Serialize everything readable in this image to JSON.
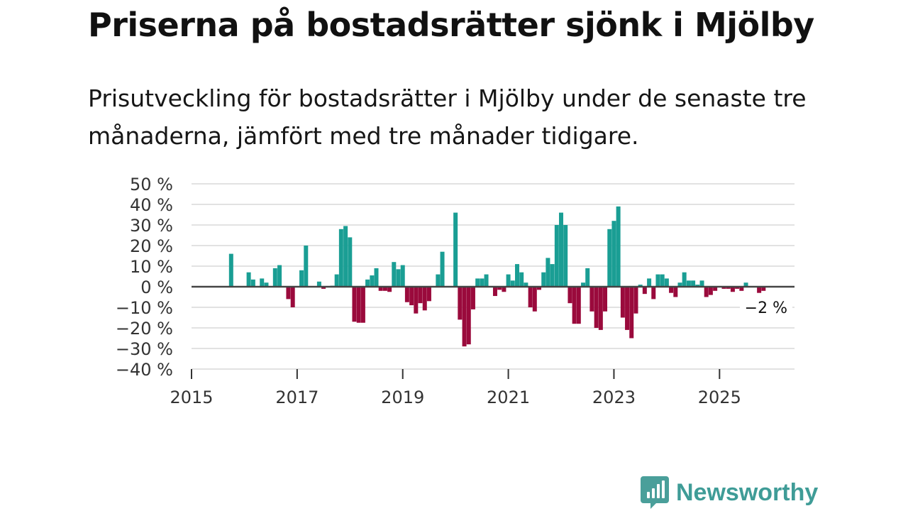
{
  "header": {
    "title": "Priserna på bostadsrätter sjönk i Mjölby",
    "subtitle": "Prisutveckling för bostadsrätter i Mjölby under de senaste tre månaderna, jämfört med tre månader tidigare."
  },
  "brand": {
    "name": "Newsworthy",
    "icon": "newsworthy-logo-icon",
    "color": "#4a9f9a"
  },
  "colors": {
    "positive": "#1a9e94",
    "negative": "#9a0a3c",
    "zero_line": "#444444",
    "grid": "#d9d9d9"
  },
  "chart_data": {
    "type": "bar",
    "title": "Priserna på bostadsrätter sjönk i Mjölby",
    "xlabel": "",
    "ylabel": "",
    "ylim": [
      -40,
      50
    ],
    "y_ticks": [
      {
        "v": 50,
        "label": "50 %"
      },
      {
        "v": 40,
        "label": "40 %"
      },
      {
        "v": 30,
        "label": "30 %"
      },
      {
        "v": 20,
        "label": "20 %"
      },
      {
        "v": 10,
        "label": "10 %"
      },
      {
        "v": 0,
        "label": "0 %"
      },
      {
        "v": -10,
        "label": "−10 %"
      },
      {
        "v": -20,
        "label": "−20 %"
      },
      {
        "v": -30,
        "label": "−30 %"
      },
      {
        "v": -40,
        "label": "−40 %"
      }
    ],
    "xlim": [
      2015.0,
      2026.42
    ],
    "x_ticks": [
      {
        "v": 2015,
        "label": "2015"
      },
      {
        "v": 2017,
        "label": "2017"
      },
      {
        "v": 2019,
        "label": "2019"
      },
      {
        "v": 2021,
        "label": "2021"
      },
      {
        "v": 2023,
        "label": "2023"
      },
      {
        "v": 2025,
        "label": "2025"
      }
    ],
    "grid": true,
    "annotation": {
      "x": 2025.875,
      "y": -2,
      "label": "−2 %"
    },
    "series": [
      {
        "name": "Prisutveckling",
        "points": [
          {
            "x": 2015.75,
            "y": 16
          },
          {
            "x": 2016.083,
            "y": 7
          },
          {
            "x": 2016.167,
            "y": 3.5
          },
          {
            "x": 2016.333,
            "y": 4
          },
          {
            "x": 2016.417,
            "y": 2
          },
          {
            "x": 2016.583,
            "y": 9
          },
          {
            "x": 2016.667,
            "y": 10.5
          },
          {
            "x": 2016.833,
            "y": -6
          },
          {
            "x": 2016.917,
            "y": -10
          },
          {
            "x": 2017.083,
            "y": 8
          },
          {
            "x": 2017.167,
            "y": 20
          },
          {
            "x": 2017.417,
            "y": 2.5
          },
          {
            "x": 2017.5,
            "y": -1
          },
          {
            "x": 2017.667,
            "y": 0.5
          },
          {
            "x": 2017.75,
            "y": 6
          },
          {
            "x": 2017.833,
            "y": 28
          },
          {
            "x": 2017.917,
            "y": 29.5
          },
          {
            "x": 2018.0,
            "y": 24
          },
          {
            "x": 2018.083,
            "y": -17
          },
          {
            "x": 2018.167,
            "y": -17.5
          },
          {
            "x": 2018.25,
            "y": -17.5
          },
          {
            "x": 2018.333,
            "y": 3.5
          },
          {
            "x": 2018.417,
            "y": 5.5
          },
          {
            "x": 2018.5,
            "y": 9
          },
          {
            "x": 2018.583,
            "y": -2
          },
          {
            "x": 2018.667,
            "y": -2
          },
          {
            "x": 2018.75,
            "y": -2.5
          },
          {
            "x": 2018.833,
            "y": 12
          },
          {
            "x": 2018.917,
            "y": 8.5
          },
          {
            "x": 2019.0,
            "y": 10.5
          },
          {
            "x": 2019.083,
            "y": -7.5
          },
          {
            "x": 2019.167,
            "y": -9
          },
          {
            "x": 2019.25,
            "y": -13
          },
          {
            "x": 2019.333,
            "y": -8
          },
          {
            "x": 2019.417,
            "y": -11.5
          },
          {
            "x": 2019.5,
            "y": -7
          },
          {
            "x": 2019.667,
            "y": 6
          },
          {
            "x": 2019.75,
            "y": 17
          },
          {
            "x": 2020.0,
            "y": 36
          },
          {
            "x": 2020.083,
            "y": -16
          },
          {
            "x": 2020.167,
            "y": -29
          },
          {
            "x": 2020.25,
            "y": -28
          },
          {
            "x": 2020.333,
            "y": -11
          },
          {
            "x": 2020.417,
            "y": 4
          },
          {
            "x": 2020.5,
            "y": 4
          },
          {
            "x": 2020.583,
            "y": 6
          },
          {
            "x": 2020.75,
            "y": -4.5
          },
          {
            "x": 2020.833,
            "y": -1.5
          },
          {
            "x": 2020.917,
            "y": -2.5
          },
          {
            "x": 2021.0,
            "y": 6
          },
          {
            "x": 2021.083,
            "y": 3
          },
          {
            "x": 2021.167,
            "y": 11
          },
          {
            "x": 2021.25,
            "y": 7
          },
          {
            "x": 2021.333,
            "y": 2
          },
          {
            "x": 2021.417,
            "y": -10
          },
          {
            "x": 2021.5,
            "y": -12
          },
          {
            "x": 2021.583,
            "y": -1.5
          },
          {
            "x": 2021.667,
            "y": 7
          },
          {
            "x": 2021.75,
            "y": 14
          },
          {
            "x": 2021.833,
            "y": 11
          },
          {
            "x": 2021.917,
            "y": 30
          },
          {
            "x": 2022.0,
            "y": 36
          },
          {
            "x": 2022.083,
            "y": 30
          },
          {
            "x": 2022.167,
            "y": -8
          },
          {
            "x": 2022.25,
            "y": -18
          },
          {
            "x": 2022.333,
            "y": -18
          },
          {
            "x": 2022.417,
            "y": 2
          },
          {
            "x": 2022.5,
            "y": 9
          },
          {
            "x": 2022.583,
            "y": -12
          },
          {
            "x": 2022.667,
            "y": -20
          },
          {
            "x": 2022.75,
            "y": -21
          },
          {
            "x": 2022.833,
            "y": -12
          },
          {
            "x": 2022.917,
            "y": 28
          },
          {
            "x": 2023.0,
            "y": 32
          },
          {
            "x": 2023.083,
            "y": 39
          },
          {
            "x": 2023.167,
            "y": -15
          },
          {
            "x": 2023.25,
            "y": -21
          },
          {
            "x": 2023.333,
            "y": -25
          },
          {
            "x": 2023.417,
            "y": -13
          },
          {
            "x": 2023.5,
            "y": 1
          },
          {
            "x": 2023.583,
            "y": -3.5
          },
          {
            "x": 2023.667,
            "y": 4
          },
          {
            "x": 2023.75,
            "y": -6
          },
          {
            "x": 2023.833,
            "y": 6
          },
          {
            "x": 2023.917,
            "y": 6
          },
          {
            "x": 2024.0,
            "y": 4
          },
          {
            "x": 2024.083,
            "y": -3
          },
          {
            "x": 2024.167,
            "y": -5
          },
          {
            "x": 2024.25,
            "y": 2
          },
          {
            "x": 2024.333,
            "y": 7
          },
          {
            "x": 2024.417,
            "y": 3
          },
          {
            "x": 2024.5,
            "y": 3
          },
          {
            "x": 2024.583,
            "y": 1
          },
          {
            "x": 2024.667,
            "y": 3
          },
          {
            "x": 2024.75,
            "y": -5
          },
          {
            "x": 2024.833,
            "y": -4
          },
          {
            "x": 2024.917,
            "y": -2
          },
          {
            "x": 2025.083,
            "y": -1
          },
          {
            "x": 2025.167,
            "y": -1
          },
          {
            "x": 2025.25,
            "y": -2.5
          },
          {
            "x": 2025.333,
            "y": -1
          },
          {
            "x": 2025.417,
            "y": -2
          },
          {
            "x": 2025.5,
            "y": 2
          },
          {
            "x": 2025.75,
            "y": -3
          },
          {
            "x": 2025.833,
            "y": -2
          }
        ]
      }
    ]
  }
}
